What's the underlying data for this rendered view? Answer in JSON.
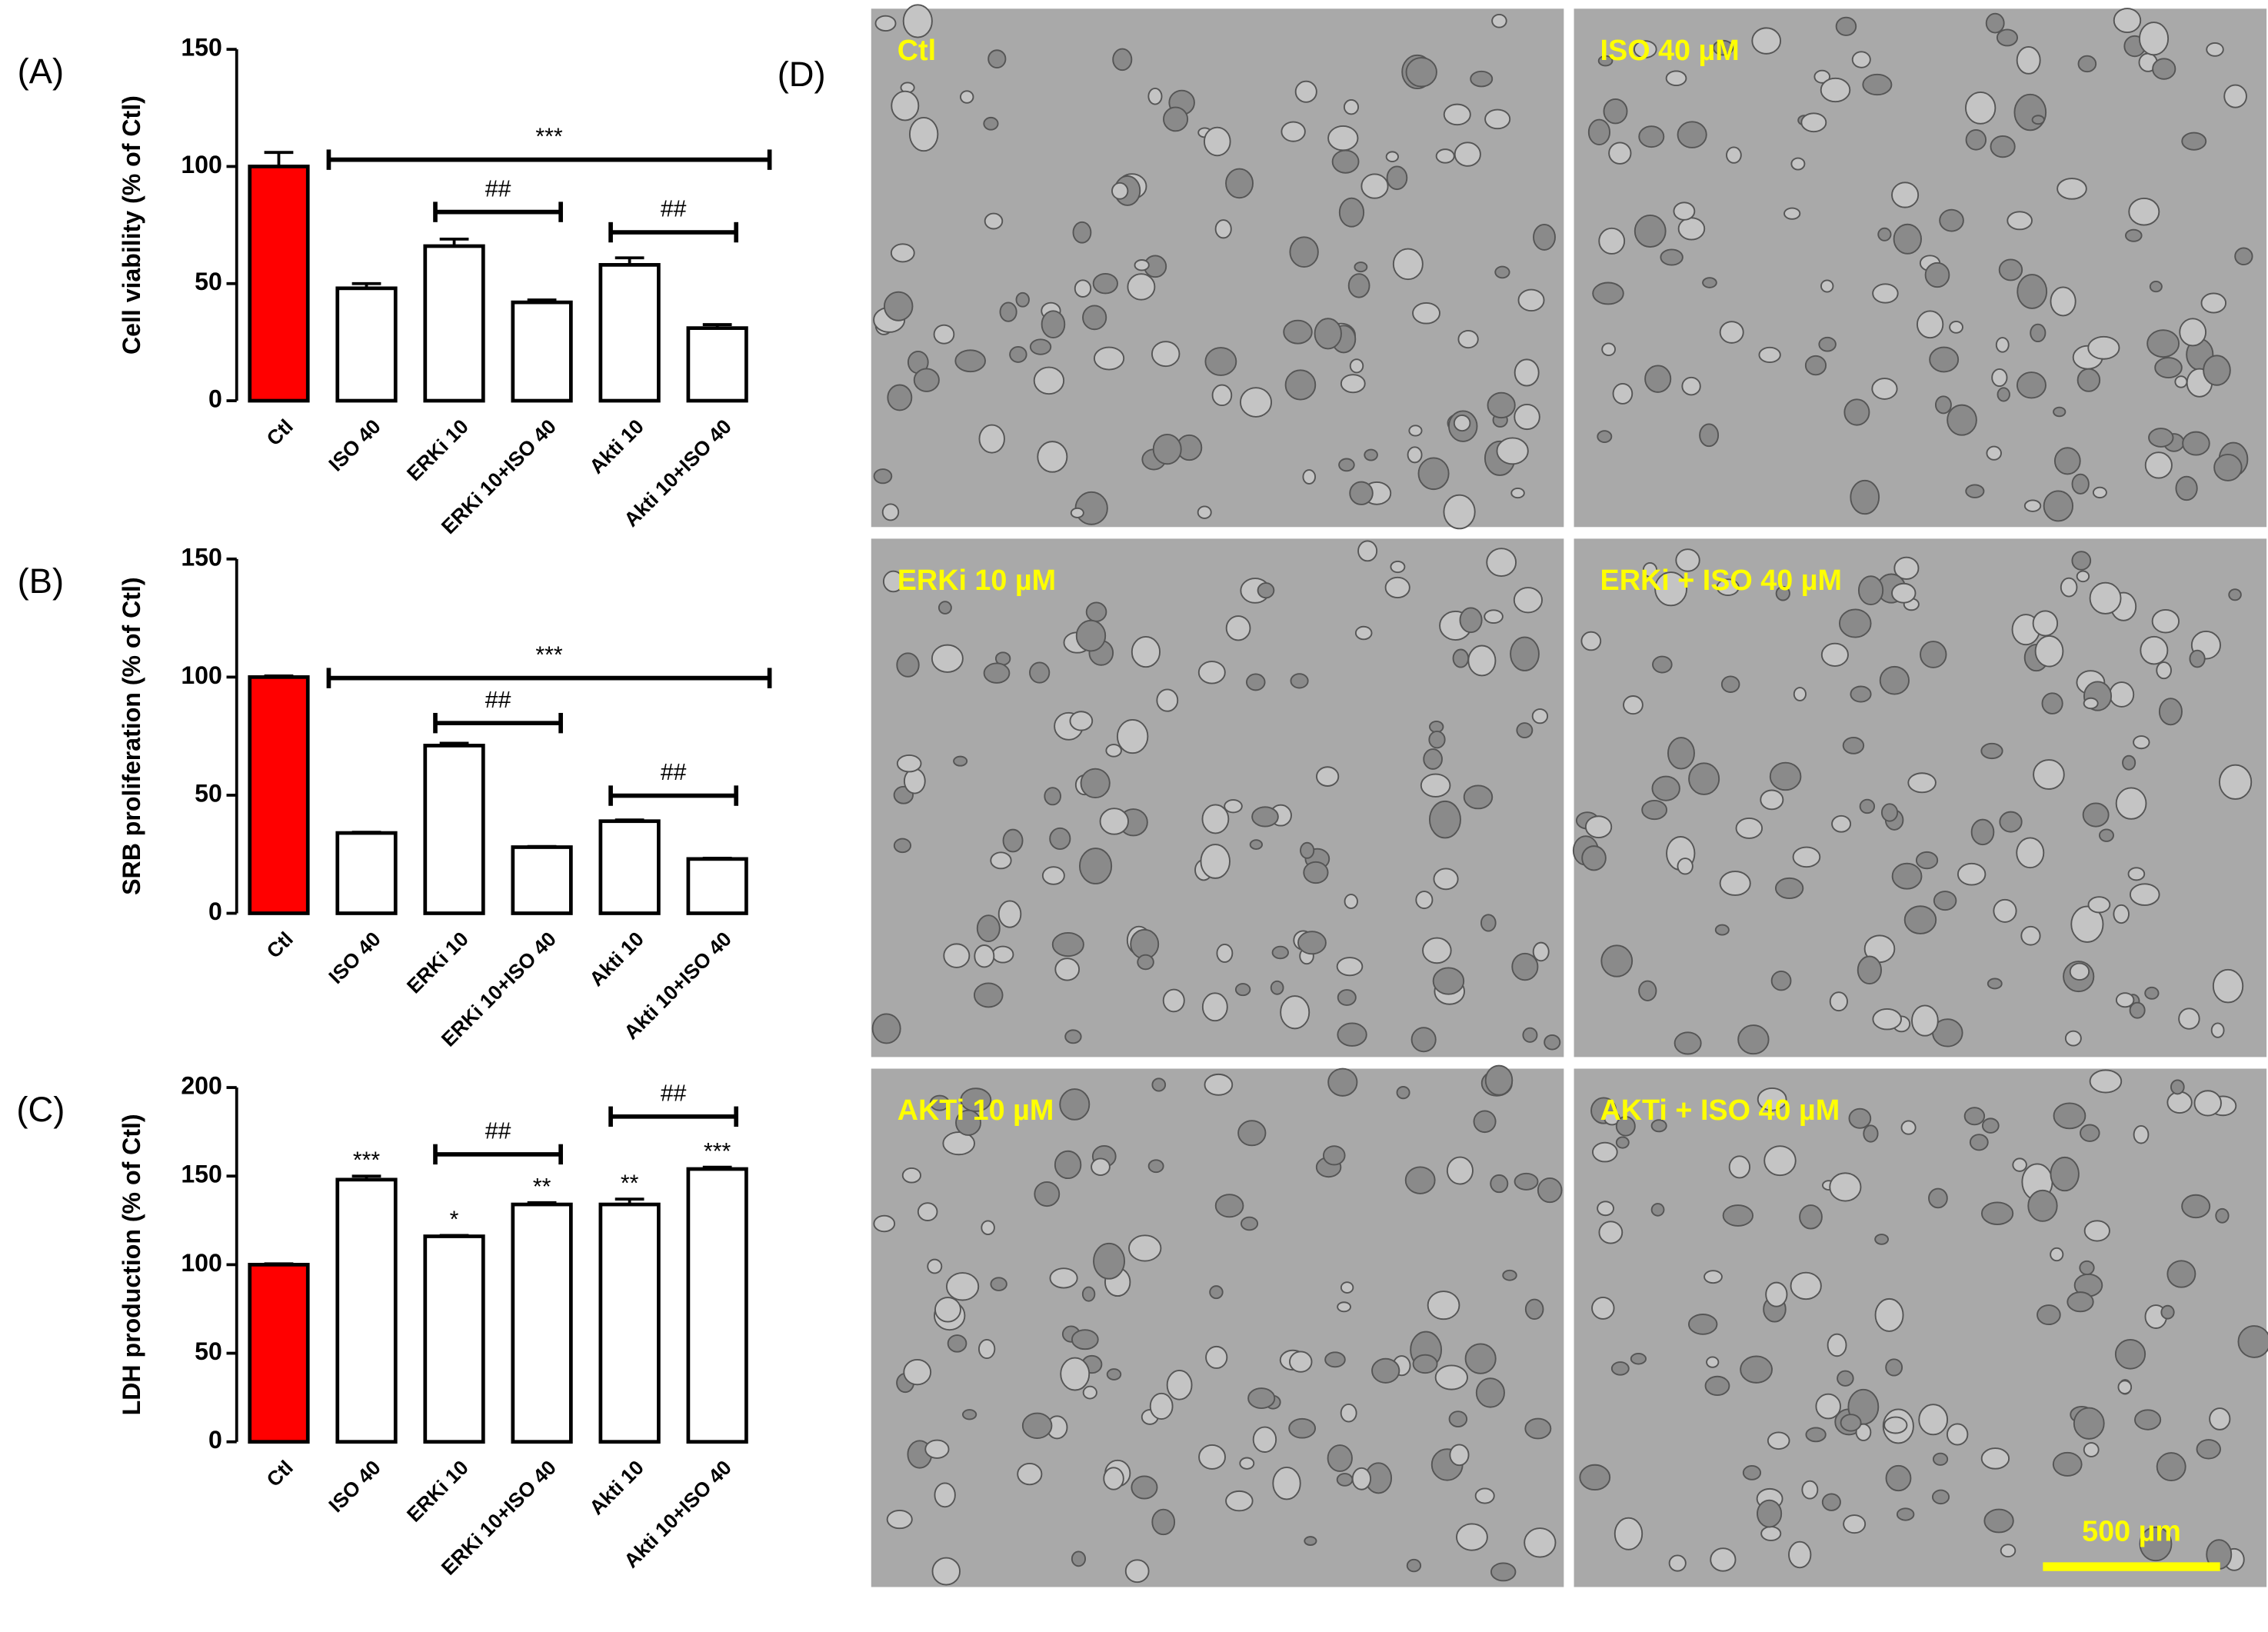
{
  "chart_data": [
    {
      "type": "bar",
      "panel": "(A)",
      "y_label": "Cell viability (% of Ctl)",
      "categories": [
        "Ctl",
        "ISO 40",
        "ERKi 10",
        "ERKi 10+ISO 40",
        "Akti 10",
        "Akti 10+ISO 40"
      ],
      "values": [
        100,
        48,
        66,
        42,
        58,
        31
      ],
      "errors": [
        6,
        2,
        3,
        1,
        3,
        1.5
      ],
      "colors": [
        "#ff0000",
        "#ffffff",
        "#ffffff",
        "#ffffff",
        "#ffffff",
        "#ffffff"
      ],
      "ylim": [
        0,
        150
      ],
      "yticks": [
        0,
        50,
        100,
        150
      ],
      "annotations": [
        "***",
        "##",
        "##"
      ]
    },
    {
      "type": "bar",
      "panel": "(B)",
      "y_label": "SRB proliferation (% of Ctl)",
      "categories": [
        "Ctl",
        "ISO 40",
        "ERKi 10",
        "ERKi 10+ISO 40",
        "Akti 10",
        "Akti 10+ISO 40"
      ],
      "values": [
        100,
        34,
        71,
        28,
        39,
        23
      ],
      "errors": [
        0.5,
        0.3,
        1,
        0.3,
        0.5,
        0.3
      ],
      "colors": [
        "#ff0000",
        "#ffffff",
        "#ffffff",
        "#ffffff",
        "#ffffff",
        "#ffffff"
      ],
      "ylim": [
        0,
        150
      ],
      "yticks": [
        0,
        50,
        100,
        150
      ],
      "annotations": [
        "***",
        "##",
        "##"
      ]
    },
    {
      "type": "bar",
      "panel": "(C)",
      "y_label": "LDH production (% of Ctl)",
      "categories": [
        "Ctl",
        "ISO 40",
        "ERKi 10",
        "ERKi 10+ISO 40",
        "Akti 10",
        "Akti 10+ISO 40"
      ],
      "values": [
        100,
        148,
        116,
        134,
        134,
        154
      ],
      "errors": [
        0.5,
        2,
        0.5,
        1,
        3,
        1
      ],
      "bar_labels": [
        null,
        "***",
        "*",
        "**",
        "**",
        "***"
      ],
      "colors": [
        "#ff0000",
        "#ffffff",
        "#ffffff",
        "#ffffff",
        "#ffffff",
        "#ffffff"
      ],
      "ylim": [
        0,
        200
      ],
      "yticks": [
        0,
        50,
        100,
        150,
        200
      ],
      "annotations": [
        "##",
        "##"
      ]
    }
  ],
  "images": {
    "panel": "(D)",
    "labels": [
      "Ctl",
      "ISO 40 µM",
      "ERKi 10 µM",
      "ERKi + ISO 40 µM",
      "AKTi 10 µM",
      "AKTi + ISO 40 µM"
    ],
    "scale_bar": "500 µm"
  }
}
